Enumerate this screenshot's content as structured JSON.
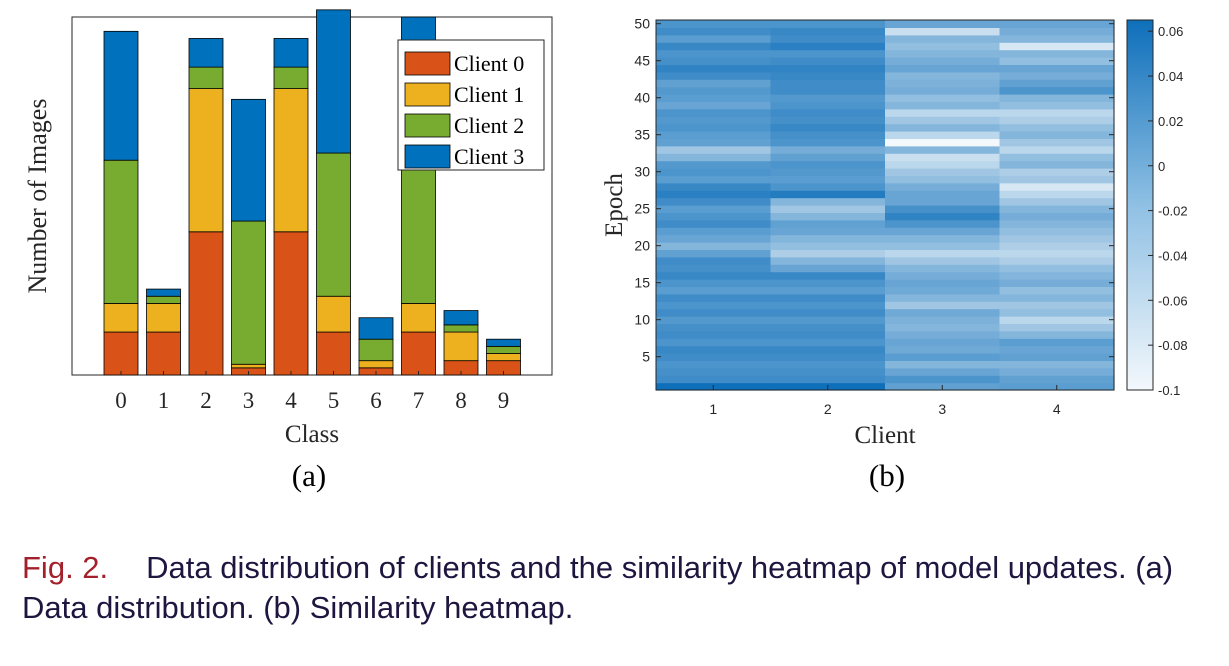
{
  "caption": {
    "label": "Fig. 2.",
    "text": "Data distribution of clients and the similarity heatmap of model updates. (a) Data distribution. (b) Similarity heatmap."
  },
  "colors": {
    "client0": "#d95319",
    "client1": "#edb120",
    "client2": "#77ac30",
    "client3": "#0072bd",
    "heat_low": "#f3f8fc",
    "heat_high": "#0e6fba"
  },
  "chart_data": [
    {
      "type": "bar",
      "stacked": true,
      "panel_label": "(a)",
      "xlabel": "Class",
      "ylabel": "Number of Images",
      "categories": [
        "0",
        "1",
        "2",
        "3",
        "4",
        "5",
        "6",
        "7",
        "8",
        "9"
      ],
      "ylim": [
        0,
        100
      ],
      "legend_position": "top-right",
      "series": [
        {
          "name": "Client 0",
          "values": [
            12,
            12,
            40,
            2,
            40,
            12,
            2,
            12,
            4,
            4
          ]
        },
        {
          "name": "Client 1",
          "values": [
            8,
            8,
            40,
            1,
            40,
            10,
            2,
            8,
            8,
            2
          ]
        },
        {
          "name": "Client 2",
          "values": [
            40,
            2,
            6,
            40,
            6,
            40,
            6,
            40,
            2,
            2
          ]
        },
        {
          "name": "Client 3",
          "values": [
            36,
            2,
            8,
            34,
            8,
            40,
            6,
            40,
            4,
            2
          ]
        }
      ]
    },
    {
      "type": "heatmap",
      "panel_label": "(b)",
      "xlabel": "Client",
      "ylabel": "Epoch",
      "x": [
        1,
        2,
        3,
        4
      ],
      "y_ticks": [
        5,
        10,
        15,
        20,
        25,
        30,
        35,
        40,
        45,
        50
      ],
      "y_range": [
        0.5,
        50.5
      ],
      "colorbar_ticks": [
        "0.06",
        "0.04",
        "0.02",
        "0",
        "-0.02",
        "-0.04",
        "-0.06",
        "-0.08",
        "-0.1"
      ],
      "color_range": [
        -0.1,
        0.065
      ],
      "columns": [
        [
          0.065,
          0.03,
          0.025,
          0.02,
          0.03,
          0.035,
          0.02,
          0.03,
          0.025,
          0.015,
          0.03,
          0.02,
          0.03,
          0.01,
          0.02,
          0.035,
          0.025,
          0.03,
          0.005,
          -0.02,
          0.0,
          0.01,
          0.03,
          0.02,
          0.01,
          0.03,
          0.045,
          0.035,
          0.01,
          0.02,
          0.015,
          -0.02,
          -0.04,
          0.005,
          0.01,
          0.02,
          0.015,
          0.02,
          0.0,
          0.01,
          0.015,
          0.005,
          0.03,
          0.04,
          0.025,
          0.02,
          0.035,
          0.01,
          0.03,
          0.02
        ],
        [
          0.065,
          0.03,
          0.025,
          0.02,
          0.03,
          0.035,
          0.02,
          0.03,
          0.025,
          0.015,
          0.03,
          0.02,
          0.03,
          0.01,
          0.02,
          0.035,
          0.0,
          -0.02,
          -0.05,
          -0.03,
          -0.02,
          0.0,
          0.005,
          -0.02,
          -0.04,
          -0.02,
          0.05,
          0.02,
          0.01,
          0.015,
          0.02,
          0.005,
          -0.01,
          0.02,
          0.025,
          0.035,
          0.025,
          0.03,
          0.02,
          0.015,
          0.03,
          0.03,
          0.035,
          0.04,
          0.03,
          0.02,
          0.045,
          0.03,
          0.035,
          0.02
        ],
        [
          0.005,
          0.02,
          0.0,
          -0.02,
          0.01,
          -0.005,
          0.0,
          -0.01,
          -0.02,
          -0.015,
          -0.005,
          -0.04,
          -0.02,
          -0.005,
          0.0,
          -0.01,
          -0.02,
          -0.04,
          -0.06,
          -0.03,
          -0.02,
          0.0,
          0.02,
          0.04,
          0.025,
          0.0,
          0.0,
          -0.01,
          -0.03,
          -0.04,
          -0.06,
          -0.07,
          -0.02,
          -0.1,
          -0.06,
          -0.02,
          -0.04,
          -0.06,
          -0.02,
          -0.03,
          -0.01,
          -0.015,
          -0.02,
          0.0,
          -0.01,
          -0.02,
          -0.03,
          -0.02,
          -0.07,
          0.0
        ],
        [
          0.01,
          0.005,
          -0.01,
          -0.02,
          0.005,
          0.0,
          0.01,
          -0.02,
          -0.04,
          -0.06,
          -0.03,
          -0.04,
          -0.02,
          -0.03,
          -0.01,
          -0.02,
          -0.03,
          -0.05,
          -0.06,
          -0.05,
          -0.04,
          -0.03,
          -0.02,
          -0.01,
          -0.02,
          -0.04,
          -0.06,
          -0.08,
          -0.04,
          -0.05,
          -0.02,
          -0.03,
          -0.06,
          -0.04,
          -0.02,
          -0.03,
          -0.05,
          -0.06,
          -0.03,
          -0.02,
          0.02,
          0.005,
          -0.01,
          0.0,
          -0.03,
          -0.02,
          -0.08,
          -0.02,
          -0.01,
          0.0
        ]
      ]
    }
  ]
}
